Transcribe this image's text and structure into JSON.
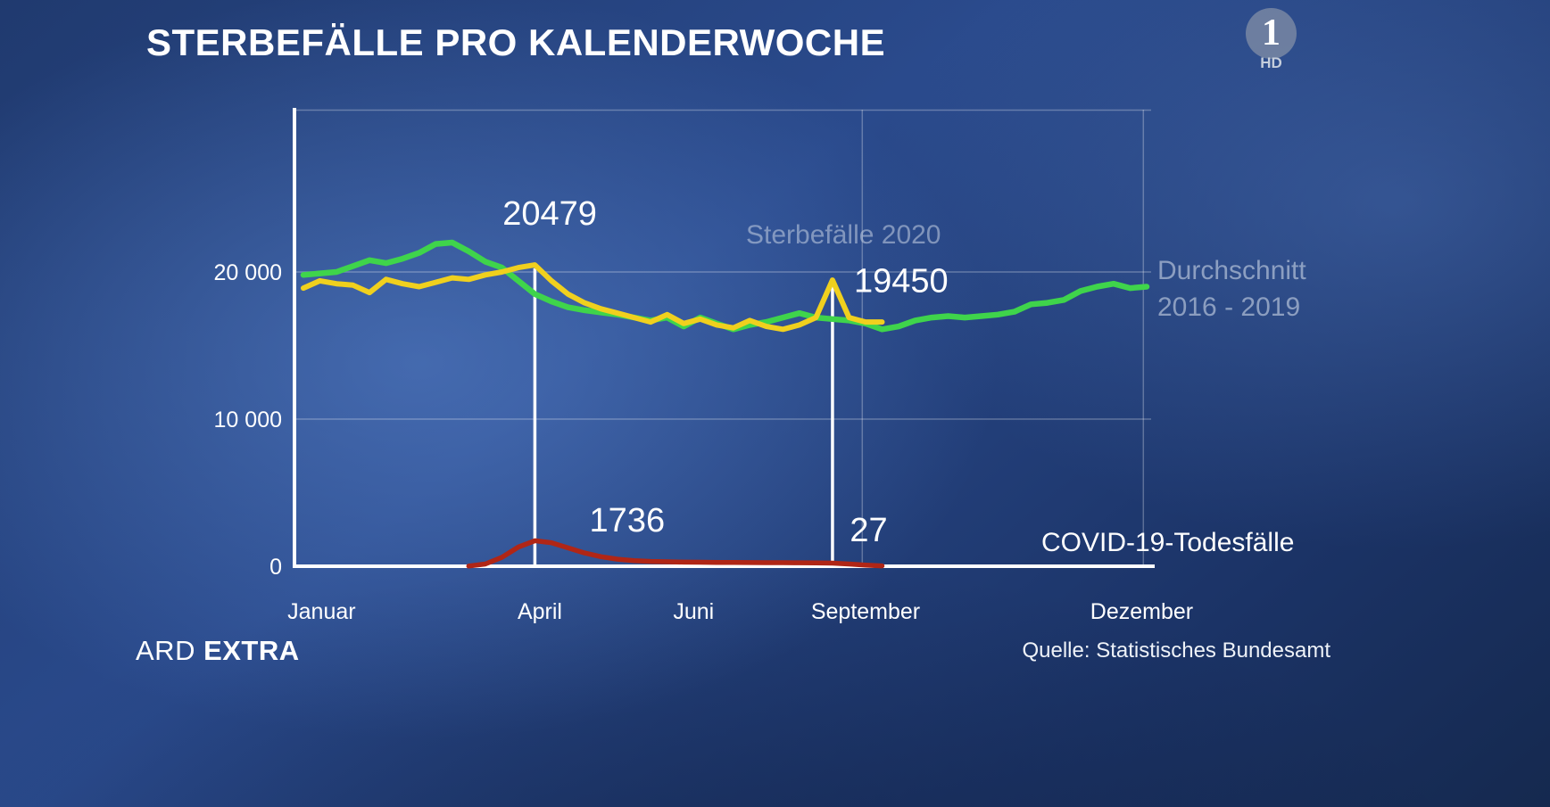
{
  "logo": {
    "number": "1",
    "hd": "HD"
  },
  "legend": {
    "series_2020": "Sterbefälle 2020",
    "avg_line1": "Durchschnitt",
    "avg_line2": "2016 - 2019",
    "covid": "COVID-19-Todesfälle"
  },
  "footer": {
    "brand": "ARD",
    "brand_bold": "EXTRA",
    "source": "Quelle: Statistisches Bundesamt"
  },
  "chart_data": {
    "type": "line",
    "title": "STERBEFÄLLE PRO KALENDERWOCHE",
    "x_unit": "Kalenderwoche",
    "x_range": [
      1,
      52
    ],
    "ylim": [
      0,
      31000
    ],
    "grid": true,
    "yticks": [
      {
        "value": 20000,
        "label": "20 000"
      },
      {
        "value": 10000,
        "label": "10 000"
      },
      {
        "value": 0,
        "label": "0"
      }
    ],
    "xticks": [
      {
        "week": 2.1,
        "label": "Januar"
      },
      {
        "week": 15.3,
        "label": "April"
      },
      {
        "week": 24.6,
        "label": "Juni"
      },
      {
        "week": 35.0,
        "label": "September"
      },
      {
        "week": 51.7,
        "label": "Dezember"
      }
    ],
    "h_gridline_values": [
      31000,
      20000,
      10000
    ],
    "v_gridline_weeks": [
      34.8,
      51.8
    ],
    "series": [
      {
        "name": "Durchschnitt 2016 - 2019",
        "color": "#3fd44b",
        "stroke_width": 6.5,
        "start_week": 1,
        "values": [
          19800,
          19900,
          20000,
          20400,
          20800,
          20600,
          20900,
          21300,
          21900,
          22000,
          21400,
          20700,
          20300,
          19400,
          18500,
          18000,
          17600,
          17400,
          17250,
          17100,
          16900,
          16700,
          16900,
          16300,
          16900,
          16500,
          16100,
          16400,
          16600,
          16900,
          17200,
          16900,
          16800,
          16700,
          16500,
          16100,
          16300,
          16700,
          16900,
          17000,
          16900,
          17000,
          17100,
          17300,
          17800,
          17900,
          18100,
          18700,
          19000,
          19200,
          18900,
          19000
        ]
      },
      {
        "name": "Sterbefälle 2020",
        "color": "#f0d01e",
        "stroke_width": 6,
        "start_week": 1,
        "values": [
          18900,
          19400,
          19200,
          19100,
          18600,
          19500,
          19200,
          19000,
          19300,
          19600,
          19500,
          19800,
          20000,
          20300,
          20479,
          19400,
          18500,
          17900,
          17500,
          17200,
          16900,
          16600,
          17100,
          16500,
          16800,
          16400,
          16200,
          16700,
          16300,
          16100,
          16400,
          16900,
          19450,
          16900,
          16600,
          16600
        ]
      },
      {
        "name": "COVID-19-Todesfälle",
        "color": "#b02616",
        "stroke_width": 5.5,
        "start_week": 11,
        "values": [
          15,
          150,
          600,
          1300,
          1736,
          1600,
          1250,
          900,
          650,
          480,
          380,
          330,
          300,
          280,
          270,
          260,
          255,
          250,
          245,
          240,
          235,
          230,
          210,
          150,
          80,
          27
        ]
      }
    ],
    "marker_lines": [
      {
        "week": 15,
        "from_value": 20250,
        "to_value": 60
      },
      {
        "week": 33,
        "from_value": 19050,
        "to_value": 60
      }
    ],
    "value_labels": [
      {
        "text": "20479",
        "week": 15.9,
        "value": 23200,
        "anchor": "middle"
      },
      {
        "text": "19450",
        "week": 34.3,
        "value": 18650,
        "anchor": "start"
      },
      {
        "text": "1736",
        "week": 18.3,
        "value": 2350,
        "anchor": "start"
      },
      {
        "text": "27",
        "week": 34.05,
        "value": 1700,
        "anchor": "start"
      }
    ]
  }
}
